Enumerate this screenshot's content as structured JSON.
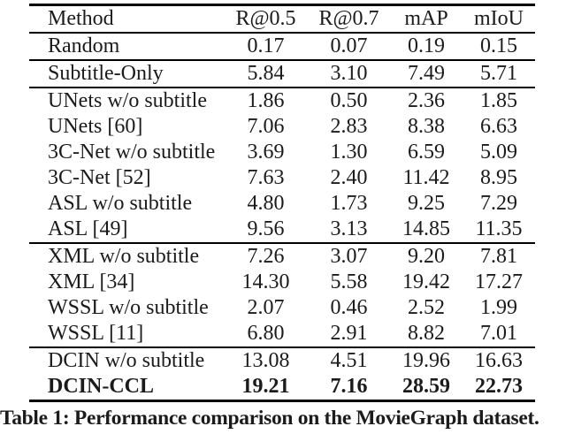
{
  "table": {
    "columns": [
      "Method",
      "R@0.5",
      "R@0.7",
      "mAP",
      "mIoU"
    ],
    "rows": [
      {
        "method": "Random",
        "values": [
          "0.17",
          "0.07",
          "0.19",
          "0.15"
        ],
        "bold": false,
        "rule_after": true
      },
      {
        "method": "Subtitle-Only",
        "values": [
          "5.84",
          "3.10",
          "7.49",
          "5.71"
        ],
        "bold": false,
        "rule_after": true
      },
      {
        "method": "UNets w/o subtitle",
        "values": [
          "1.86",
          "0.50",
          "2.36",
          "1.85"
        ],
        "bold": false,
        "rule_after": false
      },
      {
        "method": "UNets [60]",
        "values": [
          "7.06",
          "2.83",
          "8.38",
          "6.63"
        ],
        "bold": false,
        "rule_after": false
      },
      {
        "method": "3C-Net w/o subtitle",
        "values": [
          "3.69",
          "1.30",
          "6.59",
          "5.09"
        ],
        "bold": false,
        "rule_after": false
      },
      {
        "method": "3C-Net [52]",
        "values": [
          "7.63",
          "2.40",
          "11.42",
          "8.95"
        ],
        "bold": false,
        "rule_after": false
      },
      {
        "method": "ASL w/o subtitle",
        "values": [
          "4.80",
          "1.73",
          "9.25",
          "7.29"
        ],
        "bold": false,
        "rule_after": false
      },
      {
        "method": "ASL [49]",
        "values": [
          "9.56",
          "3.13",
          "14.85",
          "11.35"
        ],
        "bold": false,
        "rule_after": true
      },
      {
        "method": "XML w/o subtitle",
        "values": [
          "7.26",
          "3.07",
          "9.20",
          "7.81"
        ],
        "bold": false,
        "rule_after": false
      },
      {
        "method": "XML [34]",
        "values": [
          "14.30",
          "5.58",
          "19.42",
          "17.27"
        ],
        "bold": false,
        "rule_after": false
      },
      {
        "method": "WSSL w/o subtitle",
        "values": [
          "2.07",
          "0.46",
          "2.52",
          "1.99"
        ],
        "bold": false,
        "rule_after": false
      },
      {
        "method": "WSSL [11]",
        "values": [
          "6.80",
          "2.91",
          "8.82",
          "7.01"
        ],
        "bold": false,
        "rule_after": true
      },
      {
        "method": "DCIN w/o subtitle",
        "values": [
          "13.08",
          "4.51",
          "19.96",
          "16.63"
        ],
        "bold": false,
        "rule_after": false
      },
      {
        "method": "DCIN-CCL",
        "values": [
          "19.21",
          "7.16",
          "28.59",
          "22.73"
        ],
        "bold": true,
        "rule_after": false
      }
    ]
  },
  "caption": "Table 1: Performance comparison on the MovieGraph dataset.",
  "colors": {
    "background": "#ffffff",
    "text": "#1b1b1b",
    "rule": "#000000"
  }
}
